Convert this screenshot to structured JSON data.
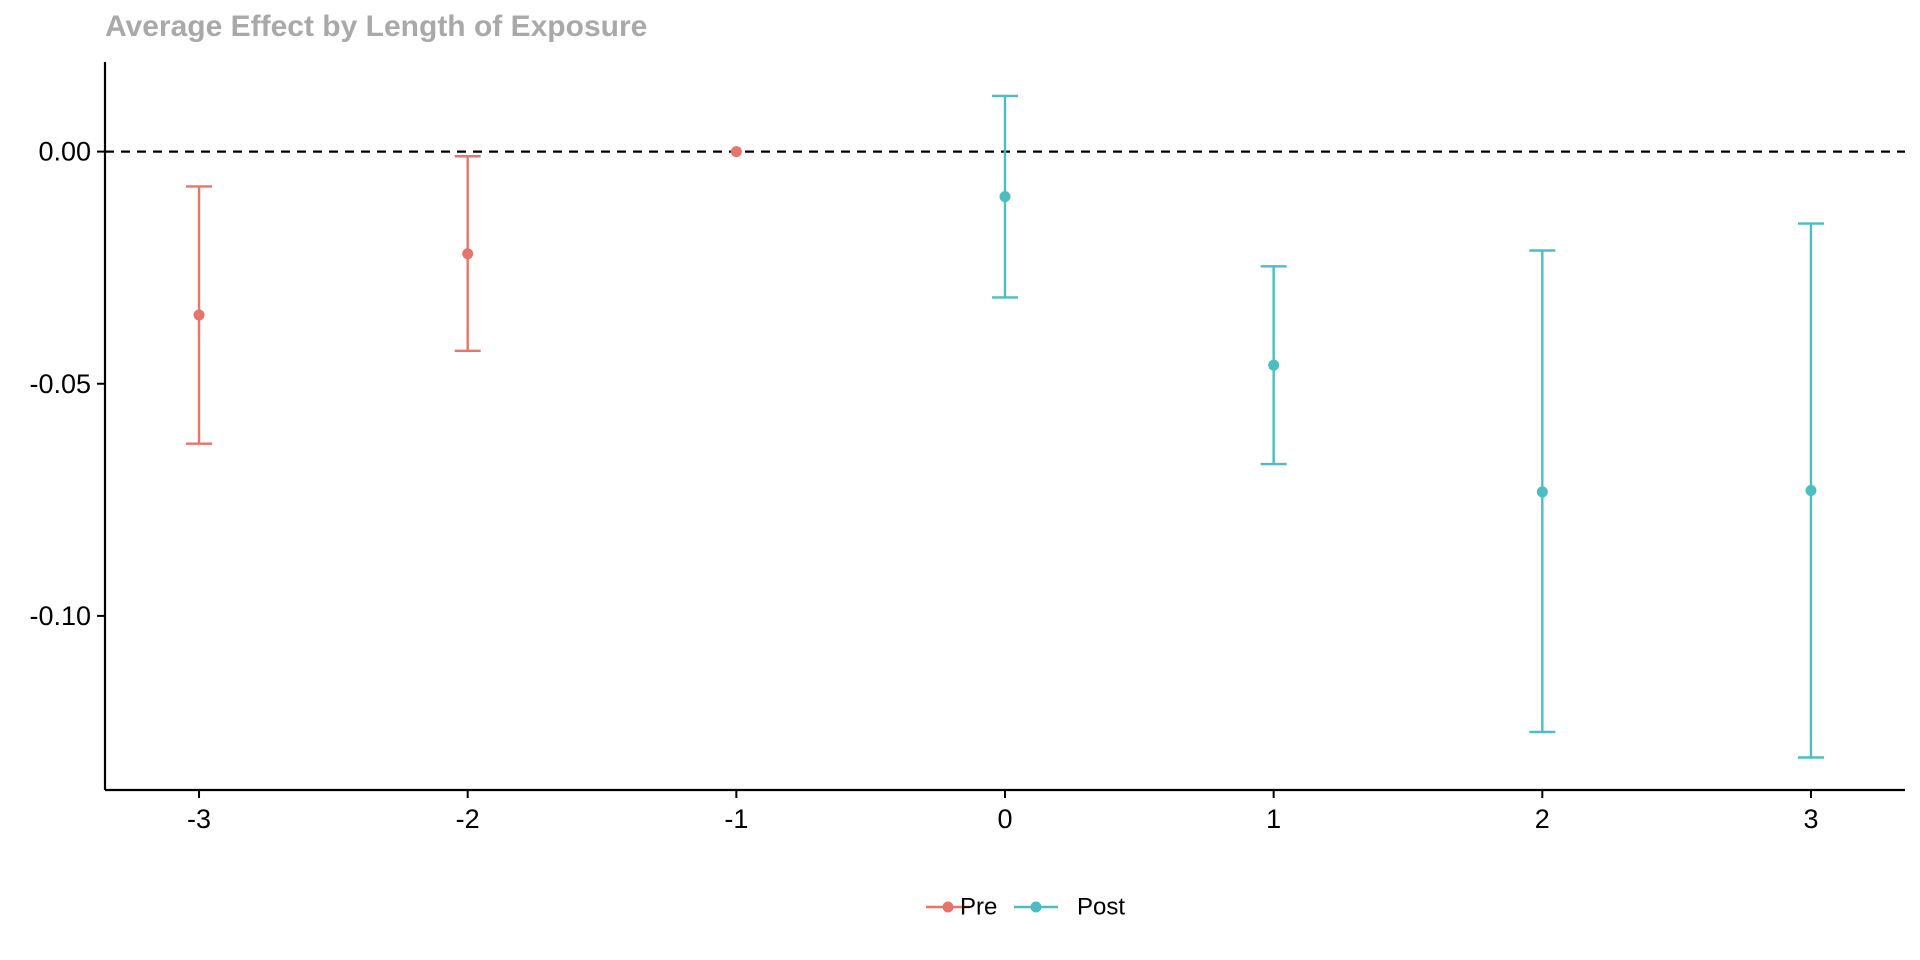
{
  "chart_data": {
    "type": "scatter",
    "title": "Average Effect by Length of Exposure",
    "xlabel": "",
    "ylabel": "",
    "x_ticks": [
      -3,
      -2,
      -1,
      0,
      1,
      2,
      3
    ],
    "x_tick_labels": [
      "-3",
      "-2",
      "-1",
      "0",
      "1",
      "2",
      "3"
    ],
    "y_ticks": [
      0.0,
      -0.05,
      -0.1
    ],
    "y_tick_labels": [
      "0.00",
      "-0.05",
      "-0.10"
    ],
    "xlim": [
      -3.35,
      3.35
    ],
    "ylim": [
      -0.1375,
      0.0193
    ],
    "reference_line": {
      "y": 0,
      "style": "dashed",
      "color": "#000000"
    },
    "legend_position": "bottom",
    "series": [
      {
        "name": "Pre",
        "color": "#E7756B",
        "points": [
          {
            "x": -3,
            "y": -0.0352,
            "lower": -0.0629,
            "upper": -0.0075
          },
          {
            "x": -2,
            "y": -0.022,
            "lower": -0.0429,
            "upper": -0.001
          },
          {
            "x": -1,
            "y": 0.0,
            "lower": 0.0,
            "upper": 0.0
          }
        ]
      },
      {
        "name": "Post",
        "color": "#4DBDC1",
        "points": [
          {
            "x": 0,
            "y": -0.0097,
            "lower": -0.0314,
            "upper": 0.012
          },
          {
            "x": 1,
            "y": -0.046,
            "lower": -0.0673,
            "upper": -0.0247
          },
          {
            "x": 2,
            "y": -0.0733,
            "lower": -0.125,
            "upper": -0.0213
          },
          {
            "x": 3,
            "y": -0.073,
            "lower": -0.1305,
            "upper": -0.0155
          }
        ]
      }
    ],
    "legend": [
      {
        "label": "Pre",
        "color": "#E7756B"
      },
      {
        "label": "Post",
        "color": "#4DBDC1"
      }
    ]
  }
}
